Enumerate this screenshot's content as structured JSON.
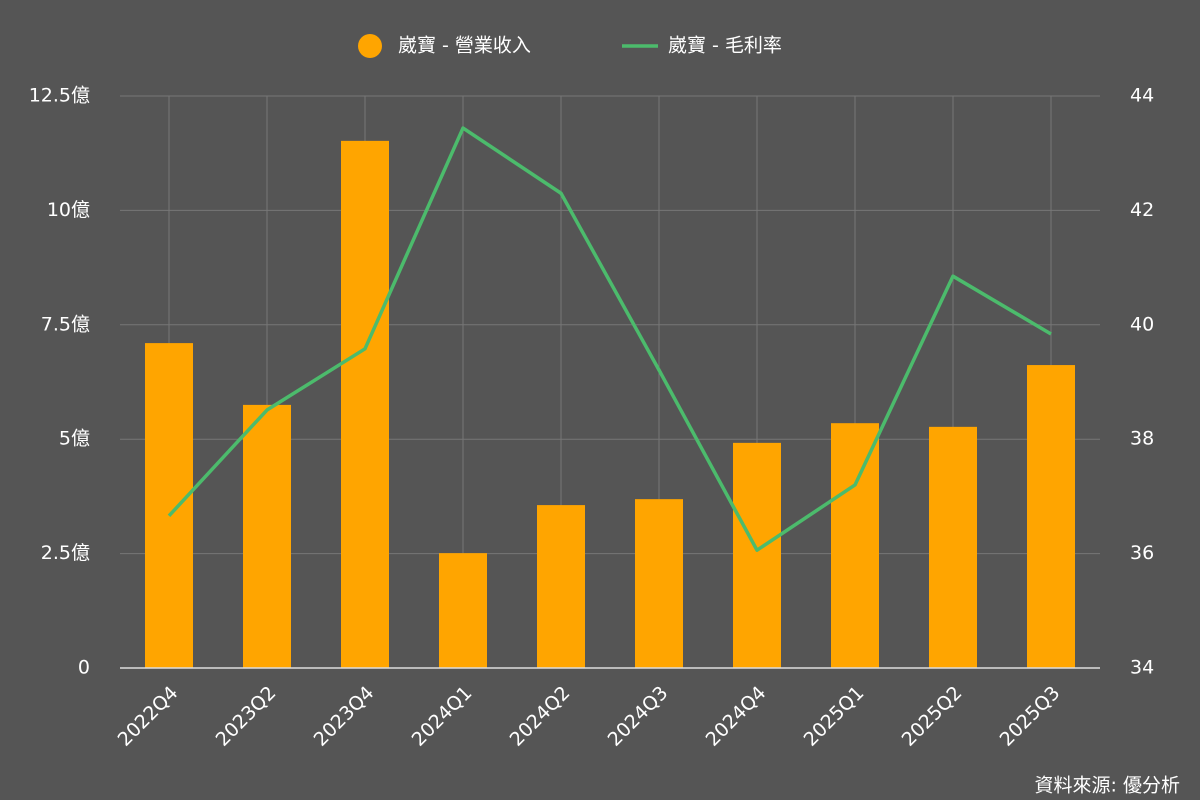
{
  "chart_data": {
    "type": "bar",
    "categories": [
      "2022Q4",
      "2023Q2",
      "2023Q4",
      "2024Q1",
      "2024Q2",
      "2024Q3",
      "2024Q4",
      "2025Q1",
      "2025Q2",
      "2025Q3"
    ],
    "series": [
      {
        "name": "崴寶 - 營業收入",
        "type": "bar",
        "color": "#ffa500",
        "values": [
          7.1,
          5.75,
          11.52,
          2.51,
          3.56,
          3.69,
          4.92,
          5.35,
          5.27,
          6.62
        ]
      },
      {
        "name": "崴寶 - 毛利率",
        "type": "line",
        "axis": "y2",
        "color": "#4cbb6c",
        "values": [
          36.66,
          38.51,
          39.58,
          43.44,
          42.3,
          39.21,
          36.06,
          37.2,
          40.85,
          39.84
        ]
      }
    ],
    "ylim": [
      0,
      12.5
    ],
    "yticks": [
      0,
      {
        "value": 2.5,
        "label": "2.5億"
      },
      {
        "value": 5,
        "label": "5億"
      },
      {
        "value": 7.5,
        "label": "7.5億"
      },
      {
        "value": 10,
        "label": "10億"
      },
      {
        "value": 12.5,
        "label": "12.5億"
      }
    ],
    "y2lim": [
      34,
      44
    ],
    "y2ticks": [
      34,
      36,
      38,
      40,
      42,
      44
    ],
    "grid": true,
    "legend": "top",
    "source": "資料來源: 優分析"
  }
}
